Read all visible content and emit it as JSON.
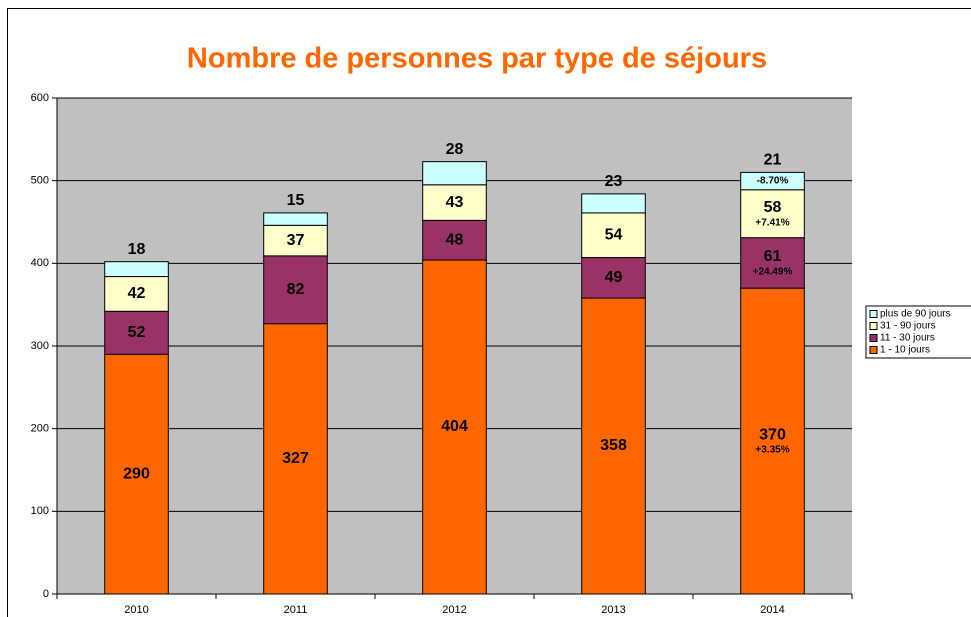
{
  "chart_data": {
    "type": "stacked_bar",
    "title": "Nombre de personnes par type de séjours",
    "categories": [
      "2010",
      "2011",
      "2012",
      "2013",
      "2014"
    ],
    "series": [
      {
        "name": "1 - 10 jours",
        "color": "#ff6600",
        "values": [
          290,
          327,
          404,
          358,
          370
        ]
      },
      {
        "name": "11 - 30 jours",
        "color": "#993366",
        "values": [
          52,
          82,
          48,
          49,
          61
        ]
      },
      {
        "name": "31 - 90 jours",
        "color": "#ffffcc",
        "values": [
          42,
          37,
          43,
          54,
          58
        ]
      },
      {
        "name": "plus de 90 jours",
        "color": "#ccffff",
        "values": [
          18,
          15,
          28,
          23,
          21
        ]
      }
    ],
    "annotations": [
      "+3.35%",
      "+24.49%",
      "+7.41%",
      "-8.70%"
    ],
    "ylim": [
      0,
      600
    ],
    "yticks": [
      0,
      100,
      200,
      300,
      400,
      500,
      600
    ],
    "grid": true,
    "legend": "right"
  }
}
